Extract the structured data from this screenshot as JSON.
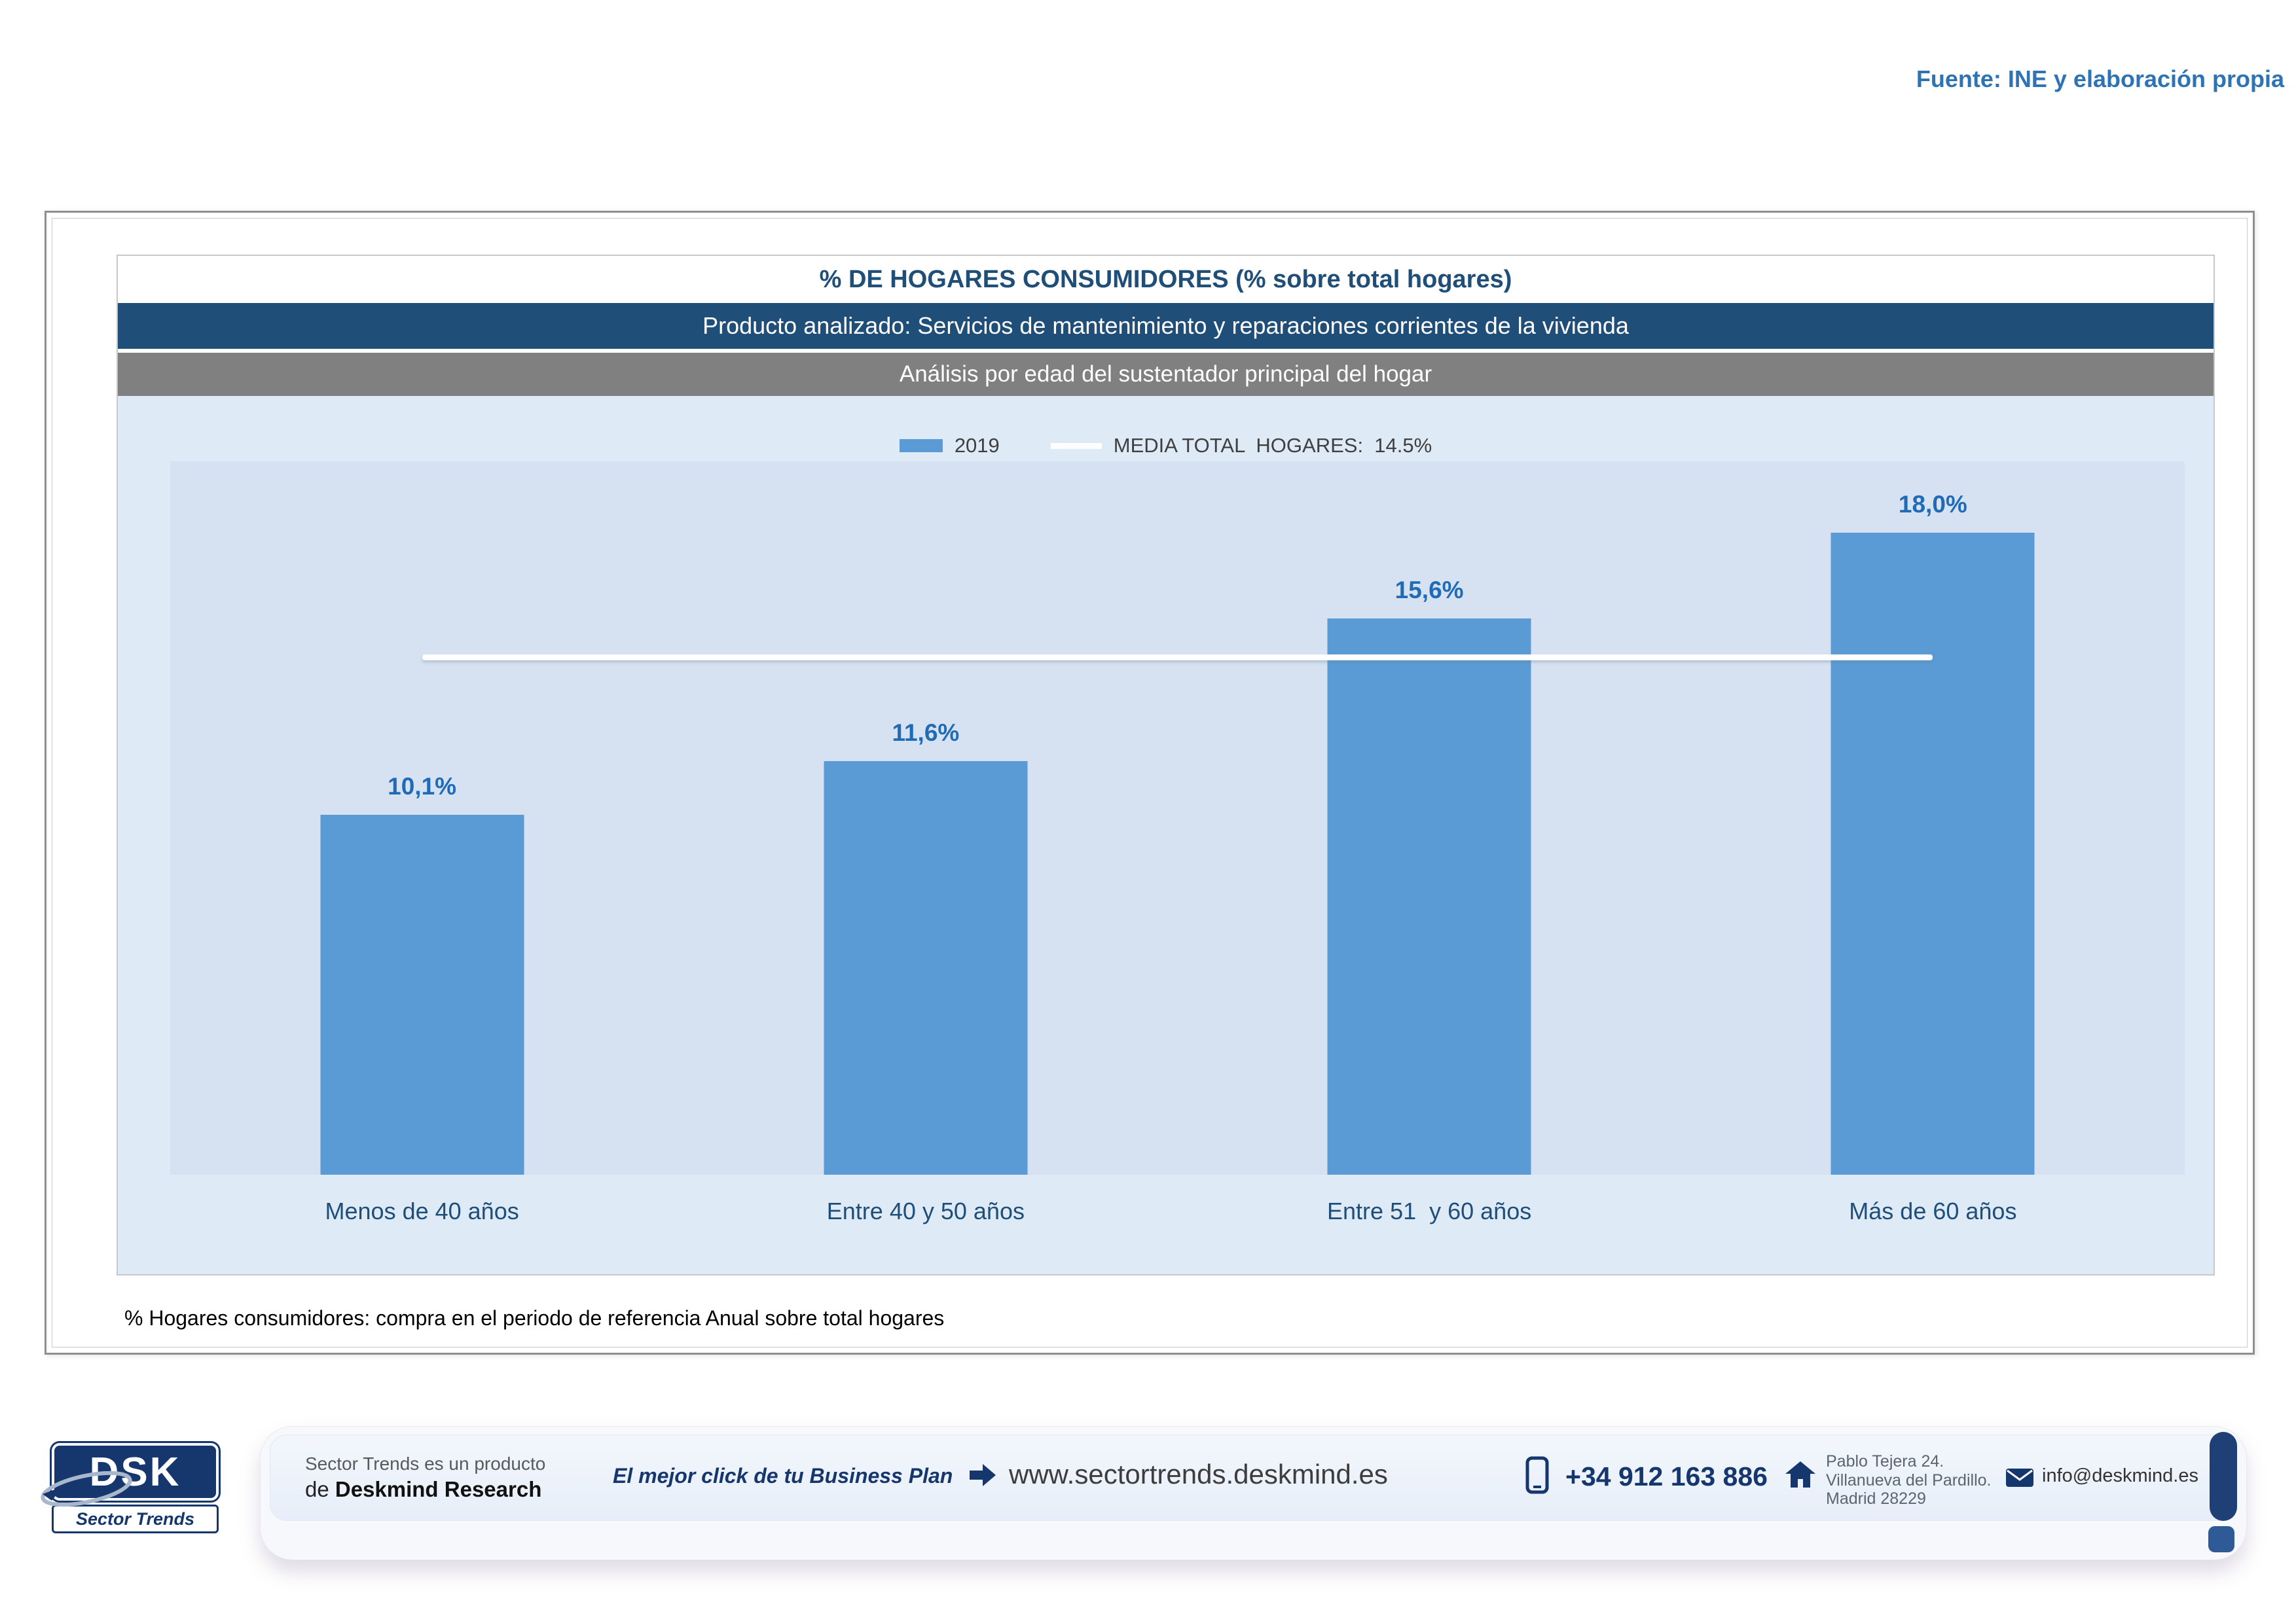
{
  "source_note": "Fuente: INE y elaboración propia",
  "header": {
    "title": "% DE HOGARES CONSUMIDORES (% sobre total hogares)",
    "product": "Producto analizado: Servicios de mantenimiento y reparaciones corrientes de la vivienda",
    "analysis": "Análisis por edad del sustentador principal del hogar"
  },
  "legend": {
    "series_label": "2019",
    "media_label": "MEDIA TOTAL  HOGARES:  14.5%"
  },
  "chart_data": {
    "type": "bar",
    "title": "% DE HOGARES CONSUMIDORES (% sobre total hogares)",
    "categories": [
      "Menos de 40 años",
      "Entre 40 y 50 años",
      "Entre 51  y 60 años",
      "Más de 60 años"
    ],
    "series_name": "2019",
    "values": [
      10.1,
      11.6,
      15.6,
      18.0
    ],
    "value_labels": [
      "10,1%",
      "11,6%",
      "15,6%",
      "18,0%"
    ],
    "reference_line": {
      "label": "MEDIA TOTAL HOGARES",
      "value": 14.5,
      "value_label": "14.5%"
    },
    "ylim": [
      0,
      20
    ],
    "grid": false,
    "legend_position": "top"
  },
  "footnote": "% Hogares consumidores: compra en el periodo de referencia Anual sobre total hogares",
  "footer": {
    "logo_text": "DSK",
    "logo_subtext": "Sector Trends",
    "product_of_line1": "Sector Trends es un producto",
    "product_of_line2_prefix": "de ",
    "product_of_line2_bold": "Deskmind Research",
    "tagline": "El mejor click de tu Business Plan",
    "website": "www.sectortrends.deskmind.es",
    "phone": "+34 912 163 886",
    "address_lines": [
      "Pablo Tejera 24.",
      "Villanueva del Pardillo.",
      "Madrid 28229"
    ],
    "email": "info@deskmind.es"
  },
  "colors": {
    "bar": "#5B9BD5",
    "media_line": "#FFFFFF",
    "product_band": "#1F4E79",
    "analysis_band": "#808080",
    "chart_background": "#DEEAF6",
    "plot_background": "#D6E2F1",
    "title_text": "#1F4E79",
    "value_label_text": "#1F6BB5",
    "source_note_text": "#2E74B5",
    "footer_navy": "#16366E"
  }
}
